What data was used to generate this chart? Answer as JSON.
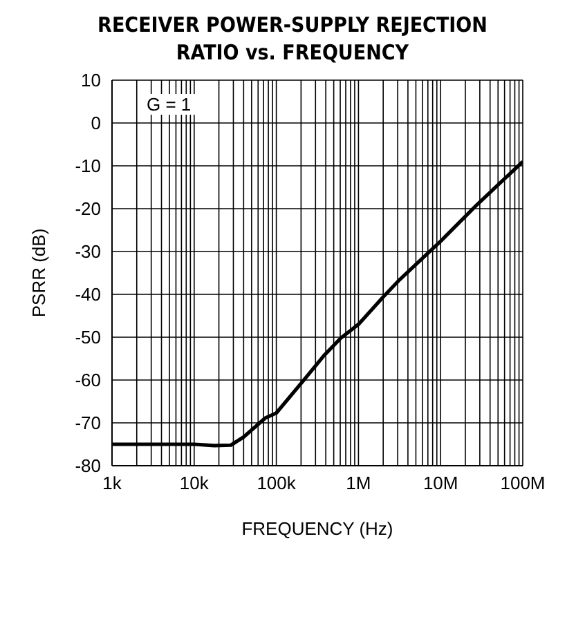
{
  "chart_data": {
    "type": "line",
    "title": "RECEIVER POWER-SUPPLY REJECTION RATIO vs. FREQUENCY",
    "xlabel": "FREQUENCY (Hz)",
    "ylabel": "PSRR (dB)",
    "annotations": [
      "G = 1"
    ],
    "log": "x",
    "grid": true,
    "legend": false,
    "marker": "none",
    "line_style": "solid",
    "xlim": [
      1000,
      100000000
    ],
    "ylim": [
      -80,
      10
    ],
    "xticks": [
      {
        "value": 1000,
        "label": "1k"
      },
      {
        "value": 2000,
        "label": null
      },
      {
        "value": 3000,
        "label": null
      },
      {
        "value": 4000,
        "label": null
      },
      {
        "value": 5000,
        "label": null
      },
      {
        "value": 6000,
        "label": null
      },
      {
        "value": 7000,
        "label": null
      },
      {
        "value": 8000,
        "label": null
      },
      {
        "value": 9000,
        "label": null
      },
      {
        "value": 10000,
        "label": "10k"
      },
      {
        "value": 20000,
        "label": null
      },
      {
        "value": 30000,
        "label": null
      },
      {
        "value": 40000,
        "label": null
      },
      {
        "value": 50000,
        "label": null
      },
      {
        "value": 60000,
        "label": null
      },
      {
        "value": 70000,
        "label": null
      },
      {
        "value": 80000,
        "label": null
      },
      {
        "value": 90000,
        "label": null
      },
      {
        "value": 100000,
        "label": "100k"
      },
      {
        "value": 200000,
        "label": null
      },
      {
        "value": 300000,
        "label": null
      },
      {
        "value": 400000,
        "label": null
      },
      {
        "value": 500000,
        "label": null
      },
      {
        "value": 600000,
        "label": null
      },
      {
        "value": 700000,
        "label": null
      },
      {
        "value": 800000,
        "label": null
      },
      {
        "value": 900000,
        "label": null
      },
      {
        "value": 1000000,
        "label": "1M"
      },
      {
        "value": 2000000,
        "label": null
      },
      {
        "value": 3000000,
        "label": null
      },
      {
        "value": 4000000,
        "label": null
      },
      {
        "value": 5000000,
        "label": null
      },
      {
        "value": 6000000,
        "label": null
      },
      {
        "value": 7000000,
        "label": null
      },
      {
        "value": 8000000,
        "label": null
      },
      {
        "value": 9000000,
        "label": null
      },
      {
        "value": 10000000,
        "label": "10M"
      },
      {
        "value": 20000000,
        "label": null
      },
      {
        "value": 30000000,
        "label": null
      },
      {
        "value": 40000000,
        "label": null
      },
      {
        "value": 50000000,
        "label": null
      },
      {
        "value": 60000000,
        "label": null
      },
      {
        "value": 70000000,
        "label": null
      },
      {
        "value": 80000000,
        "label": null
      },
      {
        "value": 90000000,
        "label": null
      },
      {
        "value": 100000000,
        "label": "100M"
      }
    ],
    "yticks": [
      -80,
      -70,
      -60,
      -50,
      -40,
      -30,
      -20,
      -10,
      0,
      10
    ],
    "x": [
      1000,
      10000,
      17600,
      28000,
      40000,
      73000,
      100000,
      210000,
      380000,
      610000,
      1000000,
      2000000,
      3200000,
      10000000,
      27000000,
      61000000,
      100000000
    ],
    "series": [
      {
        "color": "#000000",
        "values": [
          -75,
          -75,
          -75.3,
          -75.2,
          -73.3,
          -68.9,
          -67.7,
          -60.3,
          -54.3,
          -50.2,
          -47,
          -40.6,
          -36.5,
          -27.6,
          -19.3,
          -12.9,
          -9
        ]
      }
    ]
  }
}
